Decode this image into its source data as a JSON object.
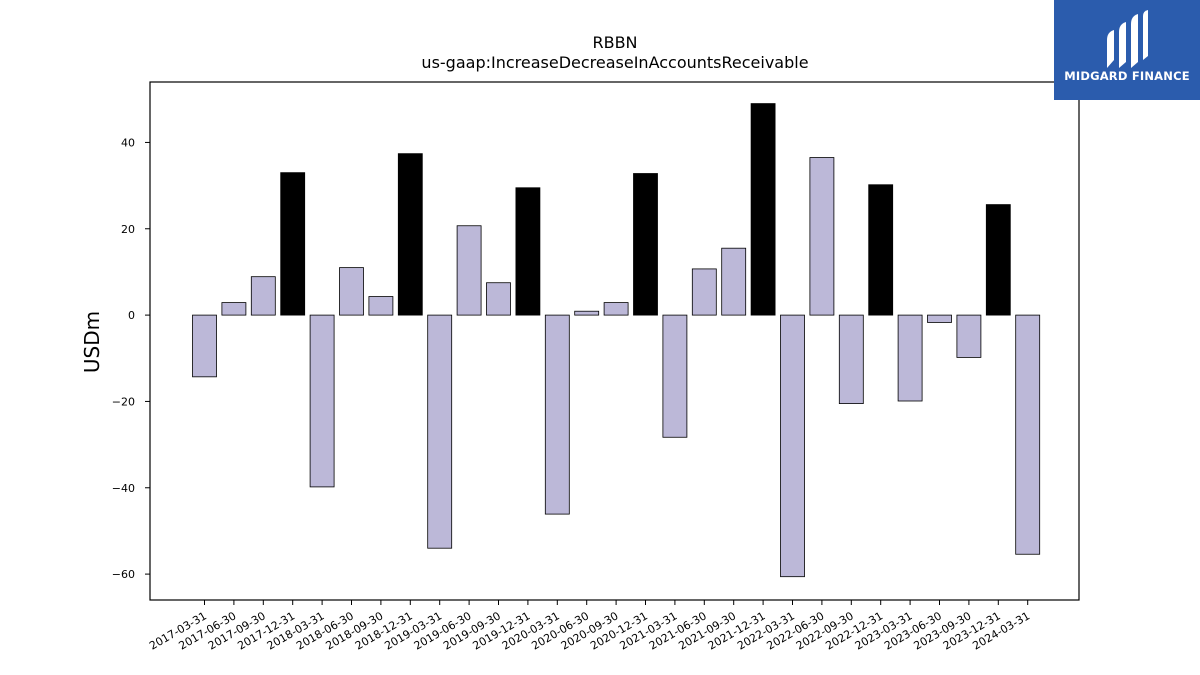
{
  "chart_data": {
    "type": "bar",
    "title": "RBBN",
    "subtitle": "us-gaap:IncreaseDecreaseInAccountsReceivable",
    "ylabel": "USDm",
    "xlabel": "",
    "ylim": [
      -66,
      54
    ],
    "yticks": [
      -60,
      -40,
      -20,
      0,
      20,
      40
    ],
    "categories": [
      "2017-03-31",
      "2017-06-30",
      "2017-09-30",
      "2017-12-31",
      "2018-03-31",
      "2018-06-30",
      "2018-09-30",
      "2018-12-31",
      "2019-03-31",
      "2019-06-30",
      "2019-09-30",
      "2019-12-31",
      "2020-03-31",
      "2020-06-30",
      "2020-09-30",
      "2020-12-31",
      "2021-03-31",
      "2021-06-30",
      "2021-09-30",
      "2021-12-31",
      "2022-03-31",
      "2022-06-30",
      "2022-09-30",
      "2022-12-31",
      "2023-03-31",
      "2023-06-30",
      "2023-09-30",
      "2023-12-31",
      "2024-03-31"
    ],
    "values": [
      -14.3,
      2.9,
      8.9,
      33.0,
      -39.8,
      11.0,
      4.3,
      37.4,
      -54.0,
      20.7,
      7.5,
      29.5,
      -46.1,
      0.9,
      2.9,
      32.8,
      -28.3,
      10.7,
      15.5,
      49.0,
      -60.6,
      36.5,
      -20.5,
      30.2,
      -19.9,
      -1.7,
      -9.8,
      25.6,
      -55.4
    ],
    "year_end_color": "#000000",
    "quarter_color": "#bcb8d8",
    "grid": false,
    "legend": "none"
  },
  "logo": {
    "text": "MIDGARD FINANCE",
    "background": "#2b5cad"
  }
}
